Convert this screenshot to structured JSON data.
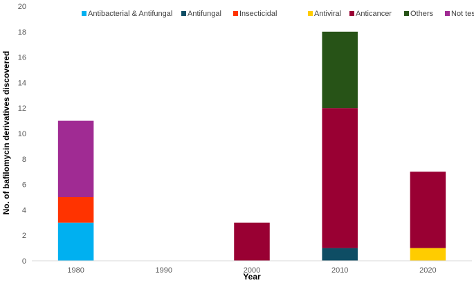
{
  "chart_data": {
    "type": "bar",
    "stacked": true,
    "categories": [
      "1980",
      "1990",
      "2000",
      "2010",
      "2020"
    ],
    "series": [
      {
        "name": "Antibacterial & Antifungal",
        "color": "#00B0F0",
        "values": [
          3,
          0,
          0,
          0,
          0
        ]
      },
      {
        "name": "Antifungal",
        "color": "#0E4D64",
        "values": [
          0,
          0,
          0,
          1,
          0
        ]
      },
      {
        "name": "Insecticidal",
        "color": "#FF3300",
        "values": [
          2,
          0,
          0,
          0,
          0
        ]
      },
      {
        "name": "Antiviral",
        "color": "#FFCC00",
        "values": [
          0,
          0,
          0,
          0,
          1
        ]
      },
      {
        "name": "Anticancer",
        "color": "#990033",
        "values": [
          0,
          0,
          3,
          11,
          6
        ]
      },
      {
        "name": "Others",
        "color": "#275317",
        "values": [
          0,
          0,
          0,
          6,
          0
        ]
      },
      {
        "name": "Not tested",
        "color": "#A02B93",
        "values": [
          6,
          0,
          0,
          0,
          0
        ]
      }
    ],
    "xlabel": "Year",
    "ylabel": "No. of bafilomycin derivatives discovered",
    "ylim": [
      0,
      20
    ],
    "yticks": [
      0,
      2,
      4,
      6,
      8,
      10,
      12,
      14,
      16,
      18,
      20
    ],
    "grid": false,
    "legend": "top"
  }
}
